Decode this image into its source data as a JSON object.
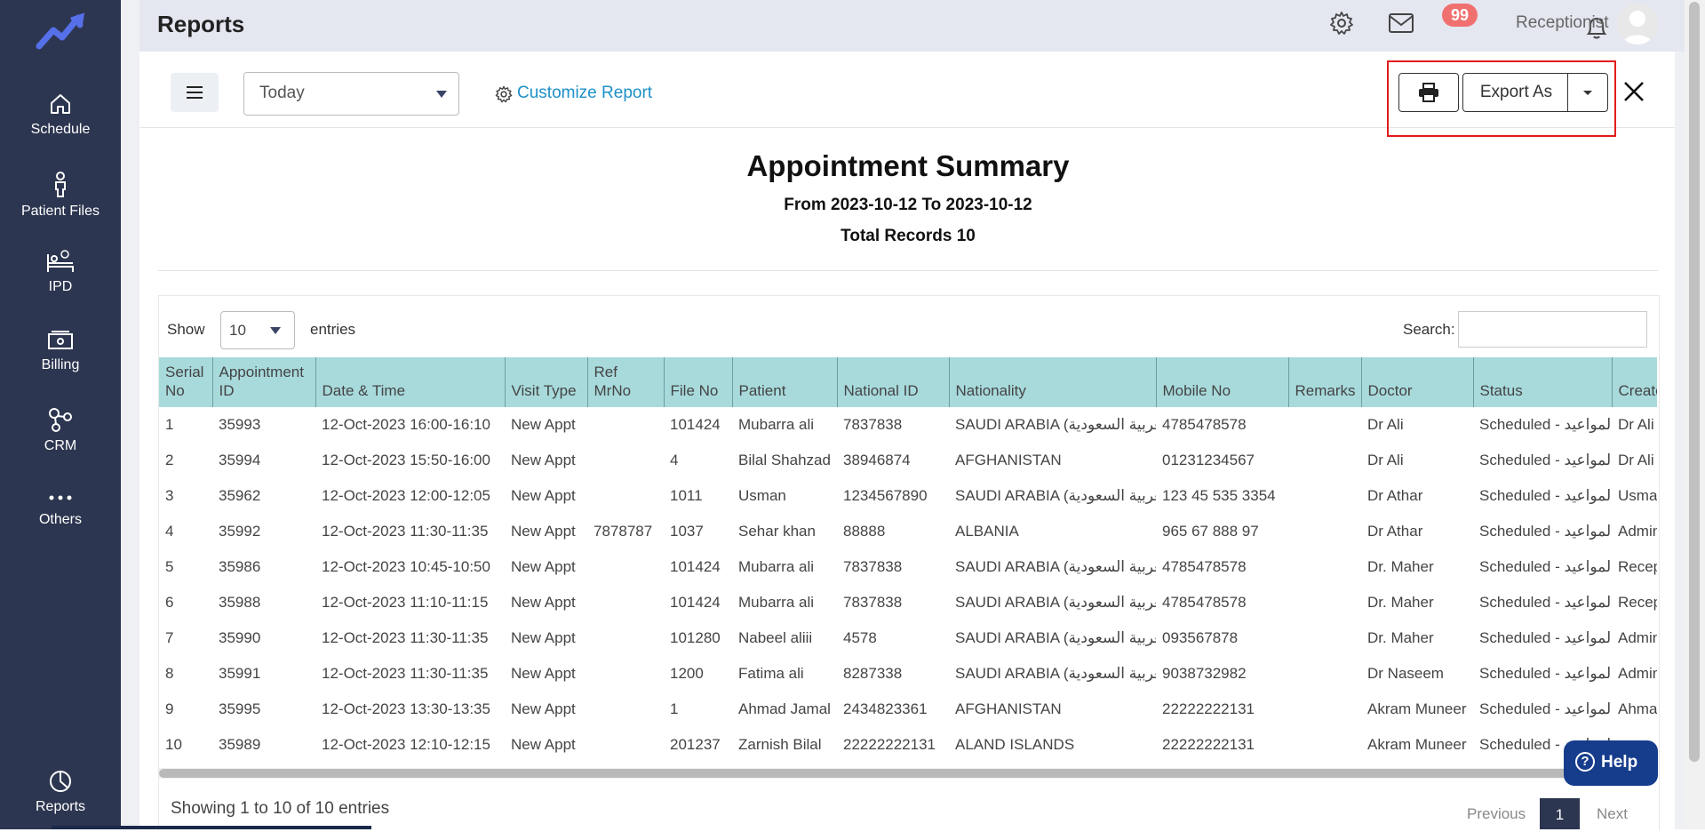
{
  "sidebar": {
    "items": [
      {
        "label": "Schedule",
        "icon": "home-icon"
      },
      {
        "label": "Patient Files",
        "icon": "patient-icon"
      },
      {
        "label": "IPD",
        "icon": "bed-icon"
      },
      {
        "label": "Billing",
        "icon": "billing-icon"
      },
      {
        "label": "CRM",
        "icon": "crm-icon"
      },
      {
        "label": "Others",
        "icon": "more-icon"
      }
    ],
    "bottom": {
      "label": "Reports",
      "icon": "reports-icon"
    }
  },
  "header": {
    "title": "Reports",
    "notification_count": "99",
    "user_name": "Receptionist"
  },
  "toolbar": {
    "date_filter": "Today",
    "customize_label": "Customize Report",
    "export_label": "Export As"
  },
  "summary": {
    "title": "Appointment Summary",
    "range": "From 2023-10-12 To 2023-10-12",
    "total": "Total Records 10"
  },
  "table_controls": {
    "show_label": "Show",
    "entries_value": "10",
    "entries_label": "entries",
    "search_label": "Search:"
  },
  "table": {
    "columns": [
      {
        "label": "Serial No",
        "key": "serial"
      },
      {
        "label": "Appointment ID",
        "key": "appt_id"
      },
      {
        "label": "Date & Time",
        "key": "datetime"
      },
      {
        "label": "Visit Type",
        "key": "visit"
      },
      {
        "label": "Ref MrNo",
        "key": "ref"
      },
      {
        "label": "File No",
        "key": "file"
      },
      {
        "label": "Patient",
        "key": "patient"
      },
      {
        "label": "National ID",
        "key": "national_id"
      },
      {
        "label": "Nationality",
        "key": "nationality"
      },
      {
        "label": "Mobile No",
        "key": "mobile"
      },
      {
        "label": "Remarks",
        "key": "remarks"
      },
      {
        "label": "Doctor",
        "key": "doctor"
      },
      {
        "label": "Status",
        "key": "status"
      },
      {
        "label": "Created",
        "key": "created"
      }
    ],
    "rows": [
      {
        "serial": "1",
        "appt_id": "35993",
        "datetime": "12-Oct-2023 16:00-16:10",
        "visit": "New Appt",
        "ref": "",
        "file": "101424",
        "patient": "Mubarra ali",
        "national_id": "7837838",
        "nationality": "SAUDI ARABIA (العربية السعودية)",
        "mobile": "4785478578",
        "remarks": "",
        "doctor": "Dr Ali",
        "status": "Scheduled - المواعيد",
        "created": "Dr Ali"
      },
      {
        "serial": "2",
        "appt_id": "35994",
        "datetime": "12-Oct-2023 15:50-16:00",
        "visit": "New Appt",
        "ref": "",
        "file": "4",
        "patient": "Bilal Shahzad",
        "national_id": "38946874",
        "nationality": "AFGHANISTAN",
        "mobile": "01231234567",
        "remarks": "",
        "doctor": "Dr Ali",
        "status": "Scheduled - المواعيد",
        "created": "Dr Ali"
      },
      {
        "serial": "3",
        "appt_id": "35962",
        "datetime": "12-Oct-2023 12:00-12:05",
        "visit": "New Appt",
        "ref": "",
        "file": "1011",
        "patient": "Usman",
        "national_id": "1234567890",
        "nationality": "SAUDI ARABIA (العربية السعودية)",
        "mobile": "123 45 535 3354",
        "remarks": "",
        "doctor": "Dr Athar",
        "status": "Scheduled - المواعيد",
        "created": "Usman"
      },
      {
        "serial": "4",
        "appt_id": "35992",
        "datetime": "12-Oct-2023 11:30-11:35",
        "visit": "New Appt",
        "ref": "7878787",
        "file": "1037",
        "patient": "Sehar khan",
        "national_id": "88888",
        "nationality": "ALBANIA",
        "mobile": "965 67 888 97",
        "remarks": "",
        "doctor": "Dr Athar",
        "status": "Scheduled - المواعيد",
        "created": "Admini"
      },
      {
        "serial": "5",
        "appt_id": "35986",
        "datetime": "12-Oct-2023 10:45-10:50",
        "visit": "New Appt",
        "ref": "",
        "file": "101424",
        "patient": "Mubarra ali",
        "national_id": "7837838",
        "nationality": "SAUDI ARABIA (العربية السعودية)",
        "mobile": "4785478578",
        "remarks": "",
        "doctor": "Dr. Maher",
        "status": "Scheduled - المواعيد",
        "created": "Recept"
      },
      {
        "serial": "6",
        "appt_id": "35988",
        "datetime": "12-Oct-2023 11:10-11:15",
        "visit": "New Appt",
        "ref": "",
        "file": "101424",
        "patient": "Mubarra ali",
        "national_id": "7837838",
        "nationality": "SAUDI ARABIA (العربية السعودية)",
        "mobile": "4785478578",
        "remarks": "",
        "doctor": "Dr. Maher",
        "status": "Scheduled - المواعيد",
        "created": "Recept"
      },
      {
        "serial": "7",
        "appt_id": "35990",
        "datetime": "12-Oct-2023 11:30-11:35",
        "visit": "New Appt",
        "ref": "",
        "file": "101280",
        "patient": "Nabeel aliii",
        "national_id": "4578",
        "nationality": "SAUDI ARABIA (العربية السعودية)",
        "mobile": "093567878",
        "remarks": "",
        "doctor": "Dr. Maher",
        "status": "Scheduled - المواعيد",
        "created": "Admini"
      },
      {
        "serial": "8",
        "appt_id": "35991",
        "datetime": "12-Oct-2023 11:30-11:35",
        "visit": "New Appt",
        "ref": "",
        "file": "1200",
        "patient": "Fatima ali",
        "national_id": "8287338",
        "nationality": "SAUDI ARABIA (العربية السعودية)",
        "mobile": "9038732982",
        "remarks": "",
        "doctor": "Dr Naseem",
        "status": "Scheduled - المواعيد",
        "created": "Admini"
      },
      {
        "serial": "9",
        "appt_id": "35995",
        "datetime": "12-Oct-2023 13:30-13:35",
        "visit": "New Appt",
        "ref": "",
        "file": "1",
        "patient": "Ahmad Jamal",
        "national_id": "2434823361",
        "nationality": "AFGHANISTAN",
        "mobile": "22222222131",
        "remarks": "",
        "doctor": "Akram Muneer",
        "status": "Scheduled - المواعيد",
        "created": "Ahmad"
      },
      {
        "serial": "10",
        "appt_id": "35989",
        "datetime": "12-Oct-2023 12:10-12:15",
        "visit": "New Appt",
        "ref": "",
        "file": "201237",
        "patient": "Zarnish Bilal",
        "national_id": "22222222131",
        "nationality": "ALAND ISLANDS",
        "mobile": "22222222131",
        "remarks": "",
        "doctor": "Akram Muneer",
        "status": "Scheduled - المواعيد",
        "created": ""
      }
    ]
  },
  "footer": {
    "showing": "Showing 1 to 10 of 10 entries",
    "prev": "Previous",
    "page": "1",
    "next": "Next",
    "help": "Help"
  },
  "colors": {
    "sidebar": "#2d3650",
    "header_row": "#a8dadc",
    "link": "#1e90c8",
    "highlight": "#e21b1b",
    "help": "#163c8c"
  }
}
